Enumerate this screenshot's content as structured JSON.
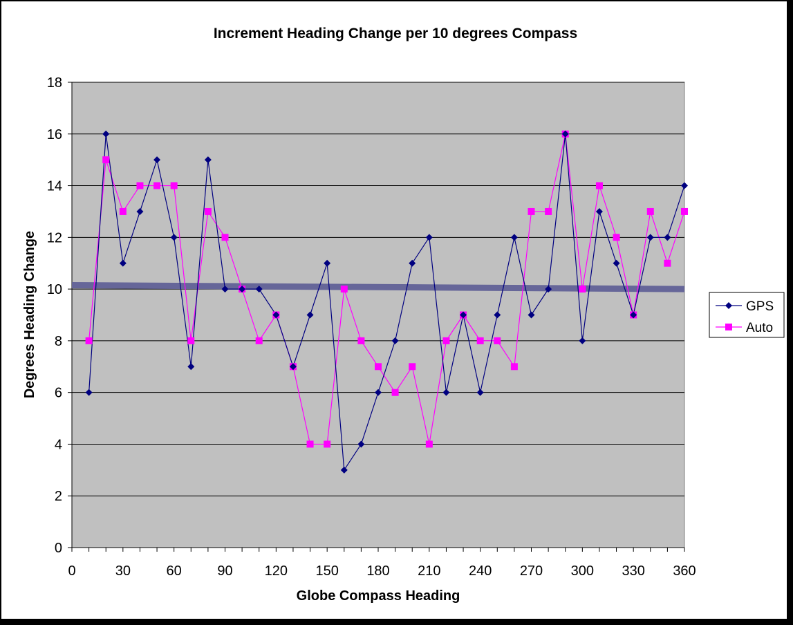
{
  "chart_data": {
    "type": "line",
    "title": "Increment Heading Change per 10 degrees Compass",
    "xlabel": "Globe Compass Heading",
    "ylabel": "Degrees Heading Change",
    "xlim": [
      0,
      360
    ],
    "ylim": [
      0,
      18
    ],
    "x_ticks": [
      "0",
      "30",
      "60",
      "90",
      "120",
      "150",
      "180",
      "210",
      "240",
      "270",
      "300",
      "330",
      "360"
    ],
    "y_ticks": [
      "0",
      "2",
      "4",
      "6",
      "8",
      "10",
      "12",
      "14",
      "16",
      "18"
    ],
    "grid": "horizontal",
    "background_color": "#c0c0c0",
    "legend_position": "right",
    "x": [
      10,
      20,
      30,
      40,
      50,
      60,
      70,
      80,
      90,
      100,
      110,
      120,
      130,
      140,
      150,
      160,
      170,
      180,
      190,
      200,
      210,
      220,
      230,
      240,
      250,
      260,
      270,
      280,
      290,
      300,
      310,
      320,
      330,
      340,
      350,
      360
    ],
    "series": [
      {
        "name": "GPS",
        "color": "#000080",
        "marker": "diamond",
        "values": [
          6,
          16,
          11,
          13,
          15,
          12,
          7,
          15,
          10,
          10,
          10,
          9,
          7,
          9,
          11,
          3,
          4,
          6,
          8,
          11,
          12,
          6,
          9,
          6,
          9,
          12,
          9,
          10,
          16,
          8,
          13,
          11,
          9,
          12,
          12,
          14
        ]
      },
      {
        "name": "Auto",
        "color": "#ff00ff",
        "marker": "square",
        "values": [
          8,
          15,
          13,
          14,
          14,
          14,
          8,
          13,
          12,
          10,
          8,
          9,
          7,
          4,
          4,
          10,
          8,
          7,
          6,
          7,
          4,
          8,
          9,
          8,
          8,
          7,
          13,
          13,
          16,
          10,
          14,
          12,
          9,
          13,
          11,
          13
        ]
      }
    ],
    "trendline": {
      "color": "#666699",
      "from": [
        0,
        10.15
      ],
      "to": [
        360,
        10.0
      ]
    }
  }
}
